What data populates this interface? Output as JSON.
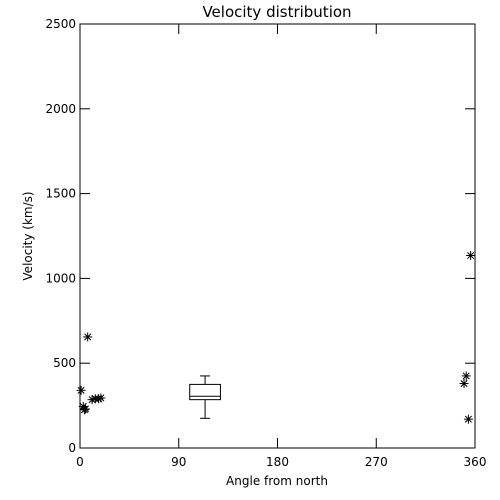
{
  "chart_data": {
    "type": "scatter",
    "title": "Velocity distribution",
    "xlabel": "Angle from north",
    "ylabel": "Velocity (km/s)",
    "xlim": [
      0,
      360
    ],
    "ylim": [
      0,
      2500
    ],
    "x_ticks": [
      0,
      90,
      180,
      270,
      360
    ],
    "x_tick_labels": [
      "0",
      "90",
      "180",
      "270",
      "360"
    ],
    "y_ticks": [
      0,
      500,
      1000,
      1500,
      2000,
      2500
    ],
    "y_tick_labels": [
      "0",
      "500",
      "1000",
      "1500",
      "2000",
      "2500"
    ],
    "grid": false,
    "colors": {
      "axes": "#000000",
      "markers": "#000000",
      "background": "#ffffff"
    },
    "points": [
      {
        "x": 1,
        "y": 340
      },
      {
        "x": 3,
        "y": 245
      },
      {
        "x": 4,
        "y": 225
      },
      {
        "x": 5,
        "y": 230
      },
      {
        "x": 7,
        "y": 655
      },
      {
        "x": 11,
        "y": 285
      },
      {
        "x": 14,
        "y": 290
      },
      {
        "x": 17,
        "y": 290
      },
      {
        "x": 19,
        "y": 295
      },
      {
        "x": 350,
        "y": 380
      },
      {
        "x": 352,
        "y": 425
      },
      {
        "x": 354,
        "y": 170
      },
      {
        "x": 356,
        "y": 1135
      }
    ],
    "box": {
      "x_left": 100,
      "x_right": 128,
      "x_center": 114,
      "whisker_low": 175,
      "q1": 285,
      "median": 305,
      "q3": 375,
      "whisker_high": 425
    }
  }
}
